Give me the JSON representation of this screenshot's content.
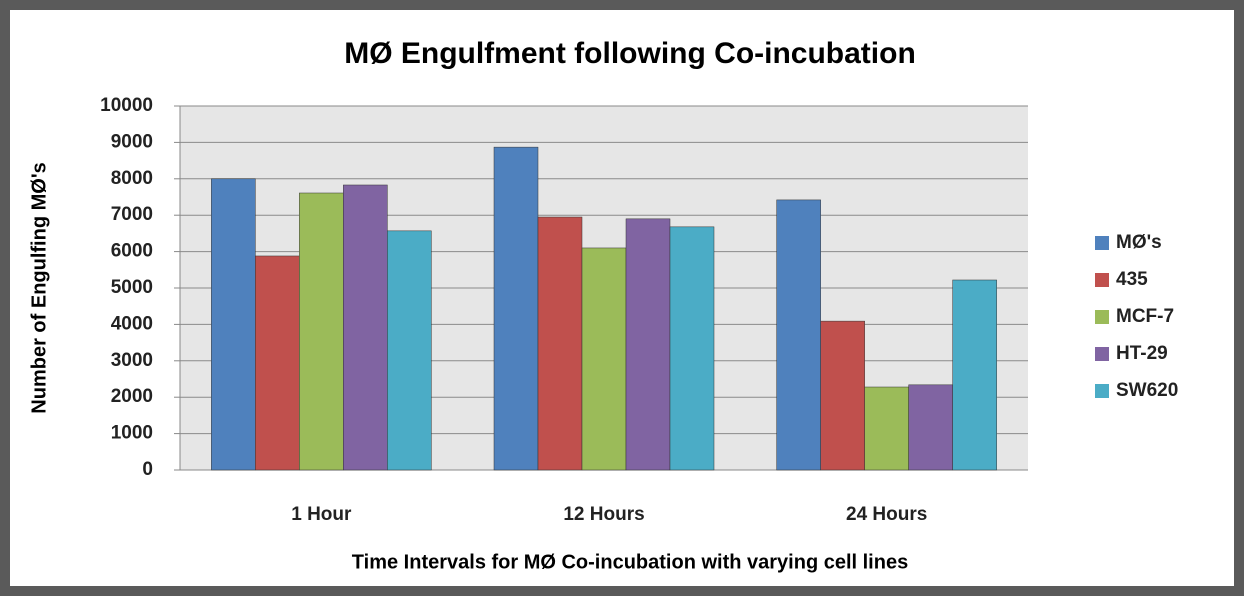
{
  "chart_data": {
    "type": "bar",
    "title": "MØ Engulfment following Co-incubation",
    "x_label": "Time Intervals for MØ Co-incubation with varying cell lines",
    "y_label": "Number of Engulfing MØ's",
    "categories": [
      "1 Hour",
      "12 Hours",
      "24 Hours"
    ],
    "series": [
      {
        "name": "MØ's",
        "color": "#4f81bd",
        "values": [
          8000,
          8870,
          7420
        ]
      },
      {
        "name": "435",
        "color": "#c0504d",
        "values": [
          5880,
          6950,
          4090
        ]
      },
      {
        "name": "MCF-7",
        "color": "#9bbb59",
        "values": [
          7610,
          6100,
          2280
        ]
      },
      {
        "name": "HT-29",
        "color": "#8064a2",
        "values": [
          7830,
          6900,
          2340
        ]
      },
      {
        "name": "SW620",
        "color": "#4bacc6",
        "values": [
          6570,
          6680,
          5220
        ]
      }
    ],
    "ylim": [
      0,
      10000
    ],
    "yticks": [
      0,
      1000,
      2000,
      3000,
      4000,
      5000,
      6000,
      7000,
      8000,
      9000,
      10000
    ],
    "grid": true,
    "legend": "right"
  }
}
